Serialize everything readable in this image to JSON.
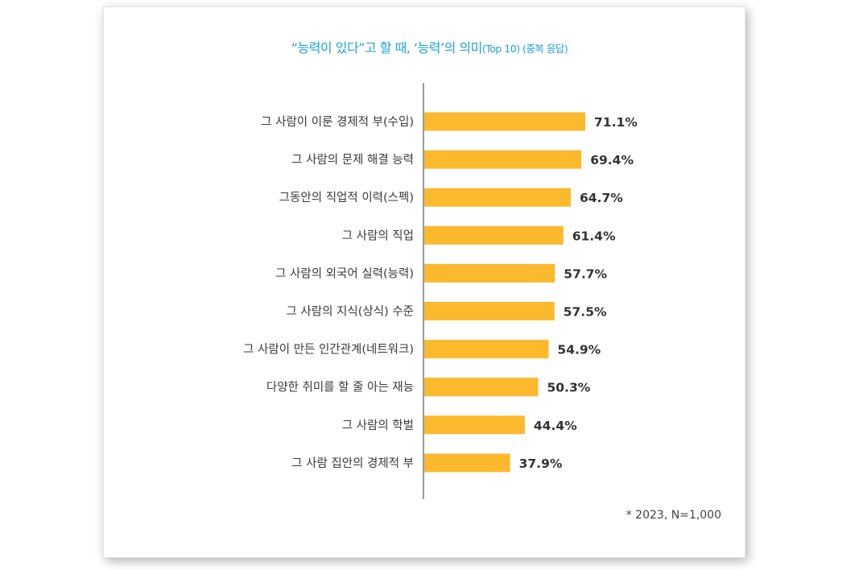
{
  "chart_data": {
    "type": "bar",
    "orientation": "horizontal",
    "title_main": "“능력이 있다”고 할 때, ‘능력’의 의미",
    "title_sub": "(Top 10) (중복 응답)",
    "categories": [
      "그 사람이 이룬 경제적 부(수입)",
      "그 사람의 문제 해결 능력",
      "그동안의 직업적 이력(스펙)",
      "그 사람의 직업",
      "그 사람의 외국어 실력(능력)",
      "그 사람의 지식(상식) 수준",
      "그 사람이 만든 인간관계(네트워크)",
      "다양한 취미를 할 줄 아는 재능",
      "그 사람의 학벌",
      "그 사람 집안의 경제적 부"
    ],
    "values": [
      71.1,
      69.4,
      64.7,
      61.4,
      57.7,
      57.5,
      54.9,
      50.3,
      44.4,
      37.9
    ],
    "value_labels": [
      "71.1%",
      "69.4%",
      "64.7%",
      "61.4%",
      "57.7%",
      "57.5%",
      "54.9%",
      "50.3%",
      "44.4%",
      "37.9%"
    ],
    "unit": "%",
    "bar_color": "#fbb92e",
    "axis_color": "#9a9a9a",
    "footnote": "* 2023, N=1,000"
  }
}
